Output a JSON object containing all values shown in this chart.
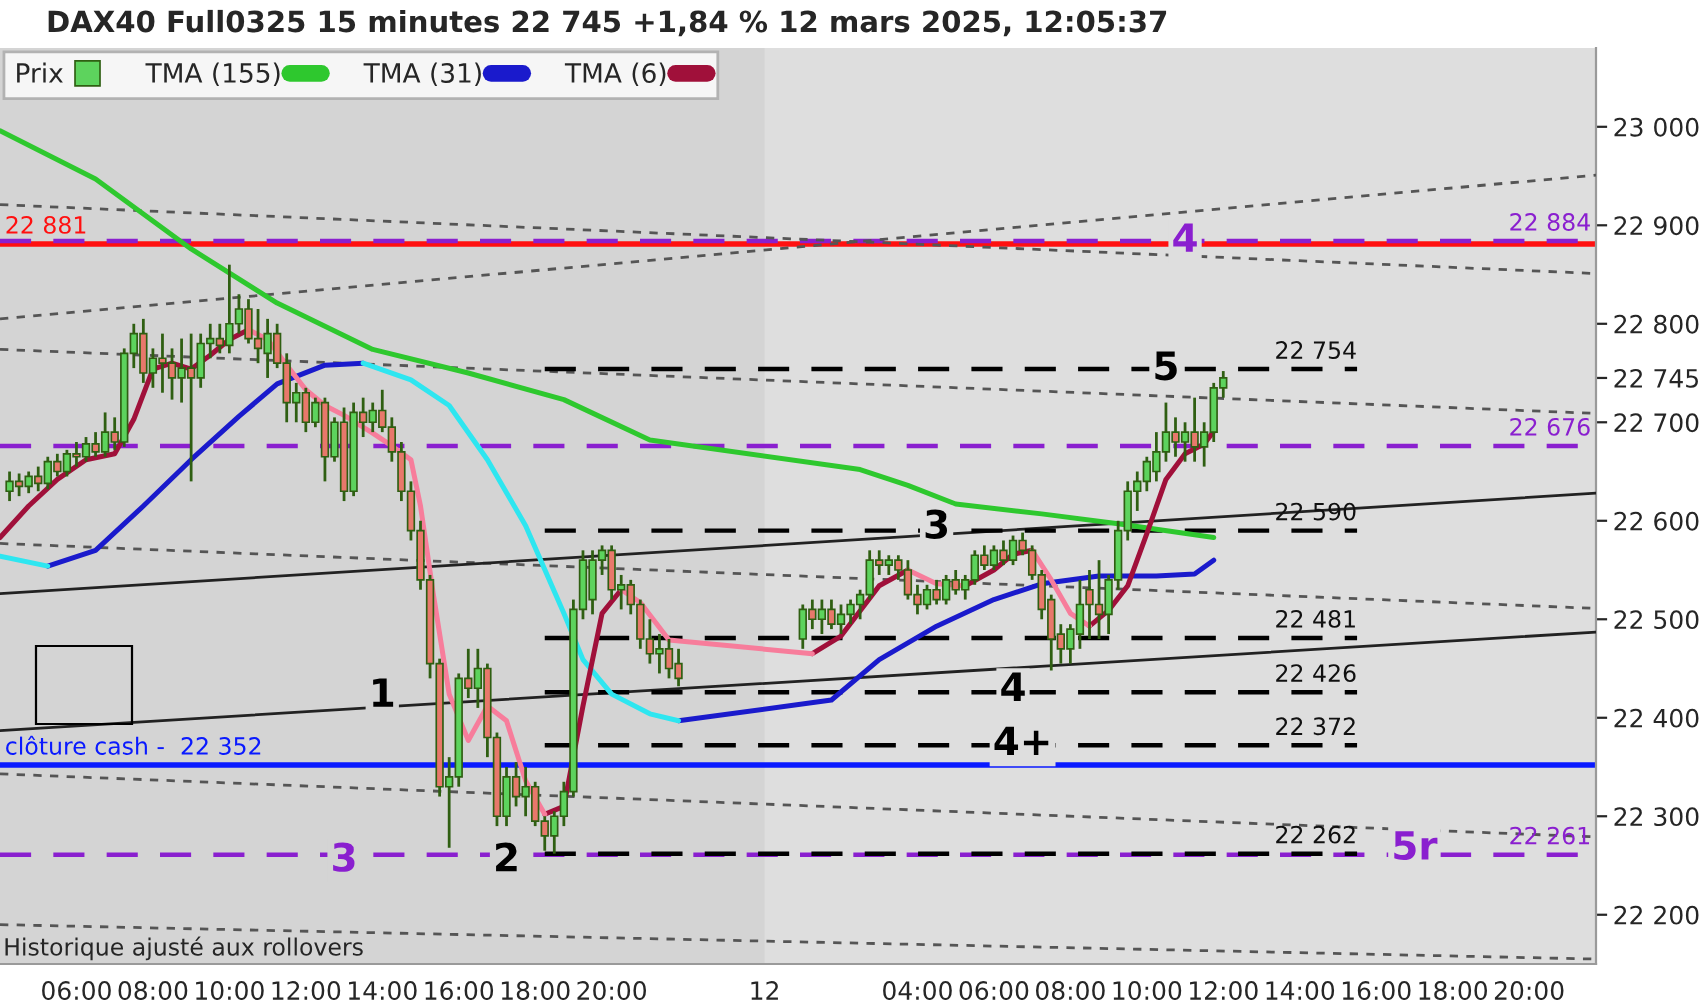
{
  "chart_data": {
    "type": "candlestick",
    "title": "DAX40 Full0325 15 minutes 22 745 +1,84 % 12 mars 2025, 12:05:37",
    "annotations": [
      "Historique ajusté aux rollovers",
      {
        "text": "1",
        "x": "2025-03-11T14:00",
        "y": 22422
      },
      {
        "text": "2",
        "x": "2025-03-11T17:15",
        "y": 22255
      },
      {
        "text": "3",
        "x": "2025-03-11T13:00",
        "y": 22255
      },
      {
        "text": "3",
        "x": "2025-03-12T04:30",
        "y": 22593
      },
      {
        "text": "4",
        "x": "2025-03-12T06:30",
        "y": 22428
      },
      {
        "text": "4+",
        "x": "2025-03-12T06:45",
        "y": 22373
      },
      {
        "text": "5",
        "x": "2025-03-12T10:30",
        "y": 22754
      },
      {
        "text": "4",
        "x": "2025-03-12T11:00",
        "y": 22884
      },
      {
        "text": "5r",
        "x": "2025-03-12T17:00",
        "y": 22267
      }
    ],
    "xlim": [
      "2025-03-11T04:00",
      "2025-03-12T21:45"
    ],
    "ylim": [
      22150,
      23080
    ],
    "xticks": [
      {
        "value": "2025-03-11T06:00",
        "label": "06:00"
      },
      {
        "value": "2025-03-11T08:00",
        "label": "08:00"
      },
      {
        "value": "2025-03-11T10:00",
        "label": "10:00"
      },
      {
        "value": "2025-03-11T12:00",
        "label": "12:00"
      },
      {
        "value": "2025-03-11T14:00",
        "label": "14:00"
      },
      {
        "value": "2025-03-11T16:00",
        "label": "16:00"
      },
      {
        "value": "2025-03-11T18:00",
        "label": "18:00"
      },
      {
        "value": "2025-03-11T20:00",
        "label": "20:00"
      },
      {
        "value": "2025-03-12T00:00",
        "label": "12"
      },
      {
        "value": "2025-03-12T04:00",
        "label": "04:00"
      },
      {
        "value": "2025-03-12T06:00",
        "label": "06:00"
      },
      {
        "value": "2025-03-12T08:00",
        "label": "08:00"
      },
      {
        "value": "2025-03-12T10:00",
        "label": "10:00"
      },
      {
        "value": "2025-03-12T12:00",
        "label": "12:00"
      },
      {
        "value": "2025-03-12T14:00",
        "label": "14:00"
      },
      {
        "value": "2025-03-12T16:00",
        "label": "16:00"
      },
      {
        "value": "2025-03-12T18:00",
        "label": "18:00"
      },
      {
        "value": "2025-03-12T20:00",
        "label": "20:00"
      }
    ],
    "yticks": [
      {
        "value": 22200,
        "label": "22 200"
      },
      {
        "value": 22300,
        "label": "22 300"
      },
      {
        "value": 22400,
        "label": "22 400"
      },
      {
        "value": 22500,
        "label": "22 500"
      },
      {
        "value": 22600,
        "label": "22 600"
      },
      {
        "value": 22700,
        "label": "22 700"
      },
      {
        "value": 22745,
        "label": "22 745"
      },
      {
        "value": 22800,
        "label": "22 800"
      },
      {
        "value": 22900,
        "label": "22 900"
      },
      {
        "value": 23000,
        "label": "23 000"
      }
    ],
    "legend": "top left",
    "bands": [
      {
        "axis": "x",
        "from": "2025-03-12T00:00",
        "to": "2025-03-12T21:45",
        "color": "#dedede"
      }
    ],
    "ref_lines": [
      {
        "axis": "y",
        "value": 22881,
        "label": "22 881",
        "color": "#ff1010",
        "line_style": "solid"
      },
      {
        "axis": "y",
        "value": 22884,
        "label": "22 884",
        "color": "#8a1fcf",
        "line_style": "dashed"
      },
      {
        "axis": "y",
        "value": 22676,
        "label": "22 676",
        "color": "#8a1fcf",
        "line_style": "dashed"
      },
      {
        "axis": "y",
        "value": 22261,
        "label": "22 261",
        "color": "#8a1fcf",
        "line_style": "dashed"
      },
      {
        "axis": "y",
        "value": 22352,
        "label": "clôture cash -  22 352",
        "color": "#0a1aff",
        "line_style": "solid"
      }
    ],
    "series": [
      {
        "name": "Prix",
        "x": [
          "2025-03-11T04:15",
          "2025-03-11T04:30",
          "2025-03-11T04:45",
          "2025-03-11T05:00",
          "2025-03-11T05:15",
          "2025-03-11T05:30",
          "2025-03-11T05:45",
          "2025-03-11T06:00",
          "2025-03-11T06:15",
          "2025-03-11T06:30",
          "2025-03-11T06:45",
          "2025-03-11T07:00",
          "2025-03-11T07:15",
          "2025-03-11T07:30",
          "2025-03-11T07:45",
          "2025-03-11T08:00",
          "2025-03-11T08:15",
          "2025-03-11T08:30",
          "2025-03-11T08:45",
          "2025-03-11T09:00",
          "2025-03-11T09:15",
          "2025-03-11T09:30",
          "2025-03-11T09:45",
          "2025-03-11T10:00",
          "2025-03-11T10:15",
          "2025-03-11T10:30",
          "2025-03-11T10:45",
          "2025-03-11T11:00",
          "2025-03-11T11:15",
          "2025-03-11T11:30",
          "2025-03-11T11:45",
          "2025-03-11T12:00",
          "2025-03-11T12:15",
          "2025-03-11T12:30",
          "2025-03-11T12:45",
          "2025-03-11T13:00",
          "2025-03-11T13:15",
          "2025-03-11T13:30",
          "2025-03-11T13:45",
          "2025-03-11T14:00",
          "2025-03-11T14:15",
          "2025-03-11T14:30",
          "2025-03-11T14:45",
          "2025-03-11T15:00",
          "2025-03-11T15:15",
          "2025-03-11T15:30",
          "2025-03-11T15:45",
          "2025-03-11T16:00",
          "2025-03-11T16:15",
          "2025-03-11T16:30",
          "2025-03-11T16:45",
          "2025-03-11T17:00",
          "2025-03-11T17:15",
          "2025-03-11T17:30",
          "2025-03-11T17:45",
          "2025-03-11T18:00",
          "2025-03-11T18:15",
          "2025-03-11T18:30",
          "2025-03-11T18:45",
          "2025-03-11T19:00",
          "2025-03-11T19:15",
          "2025-03-11T19:30",
          "2025-03-11T19:45",
          "2025-03-11T20:00",
          "2025-03-11T20:15",
          "2025-03-11T20:30",
          "2025-03-11T20:45",
          "2025-03-11T21:00",
          "2025-03-11T21:15",
          "2025-03-11T21:30",
          "2025-03-11T21:45",
          "2025-03-12T01:00",
          "2025-03-12T01:15",
          "2025-03-12T01:30",
          "2025-03-12T01:45",
          "2025-03-12T02:00",
          "2025-03-12T02:15",
          "2025-03-12T02:30",
          "2025-03-12T02:45",
          "2025-03-12T03:00",
          "2025-03-12T03:15",
          "2025-03-12T03:30",
          "2025-03-12T03:45",
          "2025-03-12T04:00",
          "2025-03-12T04:15",
          "2025-03-12T04:30",
          "2025-03-12T04:45",
          "2025-03-12T05:00",
          "2025-03-12T05:15",
          "2025-03-12T05:30",
          "2025-03-12T05:45",
          "2025-03-12T06:00",
          "2025-03-12T06:15",
          "2025-03-12T06:30",
          "2025-03-12T06:45",
          "2025-03-12T07:00",
          "2025-03-12T07:15",
          "2025-03-12T07:30",
          "2025-03-12T07:45",
          "2025-03-12T08:00",
          "2025-03-12T08:15",
          "2025-03-12T08:30",
          "2025-03-12T08:45",
          "2025-03-12T09:00",
          "2025-03-12T09:15",
          "2025-03-12T09:30",
          "2025-03-12T09:45",
          "2025-03-12T10:00",
          "2025-03-12T10:15",
          "2025-03-12T10:30",
          "2025-03-12T10:45",
          "2025-03-12T11:00",
          "2025-03-12T11:15",
          "2025-03-12T11:30",
          "2025-03-12T11:45",
          "2025-03-12T12:00"
        ],
        "ohlc": [
          [
            22630,
            22650,
            22620,
            22640
          ],
          [
            22640,
            22648,
            22625,
            22635
          ],
          [
            22635,
            22650,
            22628,
            22645
          ],
          [
            22645,
            22655,
            22630,
            22638
          ],
          [
            22638,
            22665,
            22632,
            22660
          ],
          [
            22660,
            22668,
            22645,
            22650
          ],
          [
            22650,
            22672,
            22645,
            22668
          ],
          [
            22668,
            22680,
            22655,
            22665
          ],
          [
            22665,
            22685,
            22660,
            22678
          ],
          [
            22678,
            22690,
            22665,
            22670
          ],
          [
            22670,
            22710,
            22665,
            22690
          ],
          [
            22690,
            22705,
            22672,
            22680
          ],
          [
            22680,
            22775,
            22675,
            22770
          ],
          [
            22770,
            22800,
            22755,
            22790
          ],
          [
            22790,
            22805,
            22740,
            22750
          ],
          [
            22750,
            22775,
            22735,
            22765
          ],
          [
            22765,
            22790,
            22730,
            22760
          ],
          [
            22760,
            22775,
            22723,
            22745
          ],
          [
            22745,
            22785,
            22720,
            22755
          ],
          [
            22755,
            22790,
            22640,
            22745
          ],
          [
            22745,
            22790,
            22735,
            22780
          ],
          [
            22780,
            22800,
            22765,
            22785
          ],
          [
            22785,
            22800,
            22770,
            22778
          ],
          [
            22778,
            22860,
            22770,
            22800
          ],
          [
            22800,
            22830,
            22790,
            22815
          ],
          [
            22815,
            22825,
            22780,
            22785
          ],
          [
            22785,
            22815,
            22760,
            22775
          ],
          [
            22770,
            22805,
            22745,
            22790
          ],
          [
            22790,
            22800,
            22755,
            22760
          ],
          [
            22760,
            22770,
            22700,
            22720
          ],
          [
            22720,
            22740,
            22700,
            22730
          ],
          [
            22730,
            22735,
            22690,
            22700
          ],
          [
            22700,
            22725,
            22695,
            22720
          ],
          [
            22720,
            22725,
            22640,
            22665
          ],
          [
            22665,
            22705,
            22660,
            22700
          ],
          [
            22700,
            22715,
            22620,
            22630
          ],
          [
            22630,
            22720,
            22625,
            22710
          ],
          [
            22710,
            22725,
            22685,
            22700
          ],
          [
            22700,
            22720,
            22690,
            22712
          ],
          [
            22712,
            22733,
            22690,
            22695
          ],
          [
            22695,
            22705,
            22660,
            22670
          ],
          [
            22670,
            22680,
            22620,
            22630
          ],
          [
            22630,
            22640,
            22580,
            22590
          ],
          [
            22590,
            22600,
            22530,
            22540
          ],
          [
            22540,
            22545,
            22440,
            22455
          ],
          [
            22455,
            22460,
            22320,
            22330
          ],
          [
            22330,
            22360,
            22268,
            22340
          ],
          [
            22340,
            22445,
            22330,
            22440
          ],
          [
            22440,
            22470,
            22420,
            22430
          ],
          [
            22430,
            22470,
            22410,
            22450
          ],
          [
            22450,
            22455,
            22360,
            22380
          ],
          [
            22380,
            22385,
            22290,
            22300
          ],
          [
            22300,
            22350,
            22290,
            22340
          ],
          [
            22340,
            22355,
            22310,
            22320
          ],
          [
            22320,
            22350,
            22300,
            22330
          ],
          [
            22330,
            22335,
            22290,
            22295
          ],
          [
            22295,
            22300,
            22265,
            22280
          ],
          [
            22280,
            22305,
            22262,
            22300
          ],
          [
            22300,
            22335,
            22290,
            22325
          ],
          [
            22325,
            22520,
            22320,
            22510
          ],
          [
            22510,
            22570,
            22500,
            22560
          ],
          [
            22520,
            22570,
            22505,
            22560
          ],
          [
            22560,
            22575,
            22545,
            22570
          ],
          [
            22570,
            22575,
            22520,
            22530
          ],
          [
            22530,
            22545,
            22510,
            22535
          ],
          [
            22535,
            22540,
            22505,
            22515
          ],
          [
            22515,
            22520,
            22470,
            22480
          ],
          [
            22480,
            22500,
            22455,
            22465
          ],
          [
            22465,
            22485,
            22445,
            22470
          ],
          [
            22470,
            22480,
            22440,
            22450
          ],
          [
            22455,
            22470,
            22432,
            22440
          ],
          [
            22480,
            22515,
            22470,
            22510
          ],
          [
            22510,
            22520,
            22490,
            22500
          ],
          [
            22500,
            22520,
            22485,
            22510
          ],
          [
            22510,
            22520,
            22490,
            22495
          ],
          [
            22495,
            22515,
            22485,
            22505
          ],
          [
            22505,
            22520,
            22495,
            22515
          ],
          [
            22515,
            22530,
            22500,
            22525
          ],
          [
            22525,
            22570,
            22520,
            22560
          ],
          [
            22560,
            22570,
            22545,
            22555
          ],
          [
            22555,
            22565,
            22545,
            22560
          ],
          [
            22560,
            22565,
            22540,
            22550
          ],
          [
            22550,
            22560,
            22520,
            22525
          ],
          [
            22525,
            22535,
            22505,
            22515
          ],
          [
            22515,
            22535,
            22510,
            22530
          ],
          [
            22530,
            22540,
            22515,
            22520
          ],
          [
            22520,
            22545,
            22515,
            22540
          ],
          [
            22540,
            22550,
            22525,
            22530
          ],
          [
            22530,
            22545,
            22520,
            22540
          ],
          [
            22540,
            22570,
            22535,
            22565
          ],
          [
            22565,
            22575,
            22550,
            22555
          ],
          [
            22555,
            22575,
            22550,
            22570
          ],
          [
            22570,
            22580,
            22555,
            22560
          ],
          [
            22560,
            22585,
            22555,
            22580
          ],
          [
            22580,
            22588,
            22565,
            22570
          ],
          [
            22570,
            22575,
            22540,
            22545
          ],
          [
            22545,
            22550,
            22500,
            22510
          ],
          [
            22520,
            22525,
            22448,
            22480
          ],
          [
            22485,
            22495,
            22455,
            22470
          ],
          [
            22470,
            22495,
            22455,
            22490
          ],
          [
            22485,
            22540,
            22470,
            22515
          ],
          [
            22530,
            22550,
            22480,
            22515
          ],
          [
            22515,
            22560,
            22480,
            22505
          ],
          [
            22505,
            22545,
            22485,
            22540
          ],
          [
            22540,
            22600,
            22530,
            22590
          ],
          [
            22590,
            22640,
            22580,
            22630
          ],
          [
            22630,
            22650,
            22610,
            22640
          ],
          [
            22640,
            22665,
            22630,
            22660
          ],
          [
            22650,
            22690,
            22640,
            22670
          ],
          [
            22670,
            22720,
            22660,
            22690
          ],
          [
            22690,
            22705,
            22665,
            22680
          ],
          [
            22680,
            22700,
            22660,
            22690
          ],
          [
            22690,
            22725,
            22660,
            22675
          ],
          [
            22675,
            22700,
            22655,
            22690
          ],
          [
            22690,
            22740,
            22680,
            22735
          ],
          [
            22735,
            22752,
            22725,
            22745
          ]
        ],
        "colors": [
          "#5dd35d",
          "#e8786b",
          "#5dd35d",
          "#e8786b",
          "#5dd35d",
          "#e8786b",
          "#5dd35d",
          "#e8786b",
          "#5dd35d",
          "#e8786b",
          "#5dd35d",
          "#e8786b",
          "#5dd35d",
          "#5dd35d",
          "#e8786b",
          "#5dd35d",
          "#e8786b",
          "#e8786b",
          "#5dd35d",
          "#e8786b",
          "#5dd35d",
          "#5dd35d",
          "#e8786b",
          "#5dd35d",
          "#5dd35d",
          "#e8786b",
          "#e8786b",
          "#5dd35d",
          "#e8786b",
          "#e8786b",
          "#5dd35d",
          "#e8786b",
          "#5dd35d",
          "#e8786b",
          "#5dd35d",
          "#e8786b",
          "#5dd35d",
          "#e8786b",
          "#5dd35d",
          "#e8786b",
          "#e8786b",
          "#e8786b",
          "#e8786b",
          "#e8786b",
          "#e8786b",
          "#e8786b",
          "#5dd35d",
          "#5dd35d",
          "#e8786b",
          "#5dd35d",
          "#e8786b",
          "#e8786b",
          "#5dd35d",
          "#e8786b",
          "#5dd35d",
          "#e8786b",
          "#e8786b",
          "#5dd35d",
          "#5dd35d",
          "#5dd35d",
          "#5dd35d",
          "#5dd35d",
          "#5dd35d",
          "#e8786b",
          "#5dd35d",
          "#e8786b",
          "#e8786b",
          "#e8786b",
          "#5dd35d",
          "#e8786b",
          "#e8786b",
          "#5dd35d",
          "#e8786b",
          "#5dd35d",
          "#e8786b",
          "#5dd35d",
          "#5dd35d",
          "#5dd35d",
          "#5dd35d",
          "#e8786b",
          "#5dd35d",
          "#e8786b",
          "#e8786b",
          "#e8786b",
          "#5dd35d",
          "#e8786b",
          "#5dd35d",
          "#e8786b",
          "#5dd35d",
          "#5dd35d",
          "#e8786b",
          "#5dd35d",
          "#e8786b",
          "#5dd35d",
          "#e8786b",
          "#e8786b",
          "#e8786b",
          "#e8786b",
          "#e8786b",
          "#5dd35d",
          "#5dd35d",
          "#e8786b",
          "#e8786b",
          "#5dd35d",
          "#5dd35d",
          "#5dd35d",
          "#5dd35d",
          "#5dd35d",
          "#5dd35d",
          "#5dd35d",
          "#e8786b",
          "#5dd35d",
          "#e8786b",
          "#5dd35d",
          "#5dd35d",
          "#5dd35d"
        ]
      },
      {
        "type": "line",
        "color": "#555555",
        "line_style": "dotted",
        "x": [
          "2025-03-11T04:00",
          "2025-03-12T21:45"
        ],
        "values": [
          22921,
          22851
        ]
      },
      {
        "type": "line",
        "color": "#555555",
        "line_style": "dotted",
        "x": [
          "2025-03-11T04:00",
          "2025-03-12T21:45"
        ],
        "values": [
          22805,
          22951
        ]
      },
      {
        "type": "line",
        "color": "#555555",
        "line_style": "dotted",
        "x": [
          "2025-03-11T04:00",
          "2025-03-12T21:45"
        ],
        "values": [
          22774,
          22709
        ]
      },
      {
        "type": "line",
        "color": "#555555",
        "line_style": "dotted",
        "x": [
          "2025-03-11T04:00",
          "2025-03-12T21:45"
        ],
        "values": [
          22577,
          22511
        ]
      },
      {
        "type": "line",
        "color": "#555555",
        "line_style": "dotted",
        "x": [
          "2025-03-11T04:00",
          "2025-03-12T21:45"
        ],
        "values": [
          22343,
          22279
        ]
      },
      {
        "type": "line",
        "color": "#555555",
        "line_style": "dotted",
        "x": [
          "2025-03-11T04:00",
          "2025-03-12T21:45"
        ],
        "values": [
          22190,
          22155
        ]
      },
      {
        "type": "line",
        "color": "#222222",
        "line_style": "solid",
        "x": [
          "2025-03-11T04:00",
          "2025-03-12T21:45"
        ],
        "values": [
          22526,
          22628
        ]
      },
      {
        "type": "line",
        "color": "#222222",
        "line_style": "solid",
        "x": [
          "2025-03-11T04:00",
          "2025-03-12T21:45"
        ],
        "values": [
          22387,
          22487
        ]
      },
      {
        "name": "22 754",
        "type": "line",
        "color": "#000000",
        "line_style": "dashed",
        "x": [
          "2025-03-11T18:15",
          "2025-03-12T15:30"
        ],
        "values": [
          22754,
          22754
        ]
      },
      {
        "name": "22 590",
        "type": "line",
        "color": "#000000",
        "line_style": "dashed",
        "x": [
          "2025-03-11T18:15",
          "2025-03-12T15:30"
        ],
        "values": [
          22590,
          22590
        ]
      },
      {
        "name": "22 481",
        "type": "line",
        "color": "#000000",
        "line_style": "dashed",
        "x": [
          "2025-03-11T18:15",
          "2025-03-12T15:30"
        ],
        "values": [
          22481,
          22481
        ]
      },
      {
        "name": "22 426",
        "type": "line",
        "color": "#000000",
        "line_style": "dashed",
        "x": [
          "2025-03-11T18:15",
          "2025-03-12T15:30"
        ],
        "values": [
          22426,
          22426
        ]
      },
      {
        "name": "22 372",
        "type": "line",
        "color": "#000000",
        "line_style": "dashed",
        "x": [
          "2025-03-11T18:15",
          "2025-03-12T15:30"
        ],
        "values": [
          22372,
          22372
        ]
      },
      {
        "name": "22 262",
        "type": "line",
        "color": "#000000",
        "line_style": "dashed",
        "x": [
          "2025-03-11T18:15",
          "2025-03-12T15:30"
        ],
        "values": [
          22262,
          22262
        ]
      },
      {
        "name": "TMA (155)",
        "type": "line",
        "color": "#2ec82e",
        "x": [
          "2025-03-11T04:00",
          "2025-03-11T06:30",
          "2025-03-11T09:00",
          "2025-03-11T11:15",
          "2025-03-11T13:45",
          "2025-03-11T16:15",
          "2025-03-11T18:45",
          "2025-03-11T21:00",
          "2025-03-12T02:30",
          "2025-03-12T03:45",
          "2025-03-12T05:00",
          "2025-03-12T07:15",
          "2025-03-12T09:15",
          "2025-03-12T11:45"
        ],
        "values": [
          22996,
          22947,
          22876,
          22821,
          22774,
          22750,
          22723,
          22682,
          22652,
          22636,
          22617,
          22607,
          22597,
          22583
        ]
      },
      {
        "name": "TMA (31)",
        "type": "line",
        "color": "#1a1acc",
        "x": [
          "2025-03-11T05:15",
          "2025-03-11T06:30",
          "2025-03-11T07:45",
          "2025-03-11T09:00",
          "2025-03-11T10:15",
          "2025-03-11T11:15",
          "2025-03-11T12:30",
          "2025-03-11T13:30",
          "2025-03-11T14:45",
          "2025-03-11T15:45",
          "2025-03-11T16:45",
          "2025-03-11T17:45",
          "2025-03-11T18:45",
          "2025-03-11T19:15",
          "2025-03-11T20:00",
          "2025-03-11T21:00",
          "2025-03-11T21:45",
          "2025-03-12T01:45",
          "2025-03-12T03:00",
          "2025-03-12T04:30",
          "2025-03-12T06:00",
          "2025-03-12T07:15",
          "2025-03-12T08:45",
          "2025-03-12T10:15",
          "2025-03-12T11:15",
          "2025-03-12T11:45"
        ],
        "values": [
          22554,
          22570,
          22615,
          22662,
          22706,
          22739,
          22758,
          22760,
          null,
          null,
          null,
          null,
          null,
          null,
          null,
          null,
          22397,
          22418,
          22459,
          22493,
          22520,
          22536,
          22544,
          22544,
          22546,
          22560
        ]
      },
      {
        "type": "line",
        "color": "#2ee6f0",
        "x": [
          "2025-03-11T04:00",
          "2025-03-11T05:15",
          "2025-03-11T06:30",
          "2025-03-11T07:45",
          "2025-03-11T09:00",
          "2025-03-11T10:15",
          "2025-03-11T11:15",
          "2025-03-11T12:30",
          "2025-03-11T13:30",
          "2025-03-11T14:45",
          "2025-03-11T15:45",
          "2025-03-11T16:45",
          "2025-03-11T17:45",
          "2025-03-11T18:45",
          "2025-03-11T19:15",
          "2025-03-11T20:00",
          "2025-03-11T21:00",
          "2025-03-11T21:45"
        ],
        "values": [
          22564,
          22554,
          null,
          null,
          null,
          null,
          null,
          null,
          22760,
          22743,
          22717,
          22662,
          22595,
          22506,
          22459,
          22424,
          22404,
          22397
        ]
      },
      {
        "name": "TMA (6)",
        "type": "line",
        "color": "#a0103a",
        "x": [
          "2025-03-11T04:00",
          "2025-03-11T04:45",
          "2025-03-11T05:30",
          "2025-03-11T06:15",
          "2025-03-11T07:00",
          "2025-03-11T07:30",
          "2025-03-11T08:00",
          "2025-03-11T08:30",
          "2025-03-11T09:00",
          "2025-03-11T09:30",
          "2025-03-11T10:00",
          "2025-03-11T10:30",
          "2025-03-11T11:00",
          "2025-03-11T11:30",
          "2025-03-11T12:00",
          "2025-03-11T12:30",
          "2025-03-11T13:00",
          "2025-03-11T13:45",
          "2025-03-11T14:15",
          "2025-03-11T14:45",
          "2025-03-11T15:00",
          "2025-03-11T15:15",
          "2025-03-11T15:45",
          "2025-03-11T16:15",
          "2025-03-11T16:45",
          "2025-03-11T17:15",
          "2025-03-11T17:45",
          "2025-03-11T18:15",
          "2025-03-11T18:45",
          "2025-03-11T19:15",
          "2025-03-11T19:45",
          "2025-03-11T20:15",
          "2025-03-11T20:45",
          "2025-03-11T21:30",
          "2025-03-12T01:15",
          "2025-03-12T02:00",
          "2025-03-12T03:00",
          "2025-03-12T03:45",
          "2025-03-12T04:30",
          "2025-03-12T05:15",
          "2025-03-12T06:00",
          "2025-03-12T06:30",
          "2025-03-12T07:00",
          "2025-03-12T07:30",
          "2025-03-12T08:00",
          "2025-03-12T08:30",
          "2025-03-12T09:00",
          "2025-03-12T09:30",
          "2025-03-12T10:00",
          "2025-03-12T10:30",
          "2025-03-12T11:00",
          "2025-03-12T11:30",
          "2025-03-12T11:45"
        ],
        "values": [
          22583,
          22615,
          22642,
          22662,
          22668,
          22703,
          22754,
          22760,
          22754,
          22768,
          22784,
          22794,
          null,
          null,
          null,
          null,
          null,
          null,
          null,
          null,
          null,
          null,
          null,
          null,
          null,
          null,
          null,
          22302,
          22310,
          22412,
          22506,
          22530,
          null,
          null,
          22465,
          22483,
          22534,
          22550,
          null,
          22534,
          22550,
          22566,
          22570,
          null,
          null,
          22493,
          22509,
          22534,
          22587,
          22642,
          22668,
          22678,
          22691
        ]
      },
      {
        "type": "line",
        "color": "#f77d9b",
        "x": [
          "2025-03-11T10:30",
          "2025-03-11T11:00",
          "2025-03-11T11:30",
          "2025-03-11T12:00",
          "2025-03-11T12:30",
          "2025-03-11T13:00",
          "2025-03-11T13:45",
          "2025-03-11T14:15",
          "2025-03-11T14:45",
          "2025-03-11T15:00",
          "2025-03-11T15:20",
          "2025-03-11T15:45",
          "2025-03-11T16:15",
          "2025-03-11T16:45",
          "2025-03-11T17:15",
          "2025-03-11T17:45",
          "2025-03-11T18:15",
          "2025-03-11T18:45",
          "2025-03-11T19:15",
          "2025-03-11T19:45",
          "2025-03-11T20:15",
          "2025-03-11T20:45",
          "2025-03-11T21:30",
          "2025-03-12T01:15",
          "2025-03-12T02:00",
          "2025-03-12T03:00",
          "2025-03-12T03:45",
          "2025-03-12T04:30",
          "2025-03-12T05:15",
          "2025-03-12T06:00",
          "2025-03-12T06:30",
          "2025-03-12T07:00",
          "2025-03-12T07:30",
          "2025-03-12T08:00",
          "2025-03-12T08:30"
        ],
        "values": [
          22794,
          22784,
          22758,
          22733,
          22717,
          22707,
          22689,
          22676,
          22662,
          22615,
          22526,
          22424,
          22377,
          22412,
          22397,
          22336,
          22302,
          null,
          null,
          null,
          22530,
          22517,
          22479,
          22465,
          null,
          null,
          22550,
          22536,
          22534,
          null,
          null,
          22570,
          22540,
          22506,
          22493
        ]
      }
    ]
  }
}
